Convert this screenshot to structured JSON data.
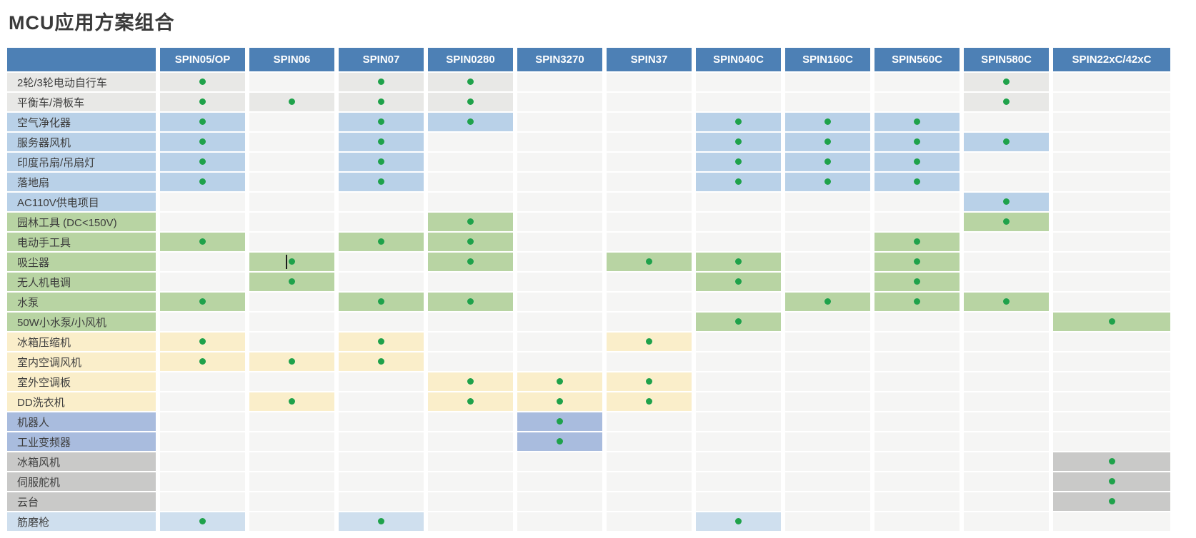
{
  "title": "MCU应用方案组合",
  "columns": [
    "SPIN05/OP",
    "SPIN06",
    "SPIN07",
    "SPIN0280",
    "SPIN3270",
    "SPIN37",
    "SPIN040C",
    "SPIN160C",
    "SPIN560C",
    "SPIN580C",
    "SPIN22xC/42xC"
  ],
  "rows": [
    {
      "label": "2轮/3轮电动自行车",
      "group": "gray",
      "dots": [
        "SPIN05/OP",
        "SPIN07",
        "SPIN0280",
        "SPIN580C"
      ]
    },
    {
      "label": "平衡车/滑板车",
      "group": "gray",
      "dots": [
        "SPIN05/OP",
        "SPIN06",
        "SPIN07",
        "SPIN0280",
        "SPIN580C"
      ]
    },
    {
      "label": "空气净化器",
      "group": "blue",
      "dots": [
        "SPIN05/OP",
        "SPIN07",
        "SPIN0280",
        "SPIN040C",
        "SPIN160C",
        "SPIN560C"
      ]
    },
    {
      "label": "服务器风机",
      "group": "blue",
      "dots": [
        "SPIN05/OP",
        "SPIN07",
        "SPIN040C",
        "SPIN160C",
        "SPIN560C",
        "SPIN580C"
      ]
    },
    {
      "label": "印度吊扇/吊扇灯",
      "group": "blue",
      "dots": [
        "SPIN05/OP",
        "SPIN07",
        "SPIN040C",
        "SPIN160C",
        "SPIN560C"
      ]
    },
    {
      "label": "落地扇",
      "group": "blue",
      "dots": [
        "SPIN05/OP",
        "SPIN07",
        "SPIN040C",
        "SPIN160C",
        "SPIN560C"
      ]
    },
    {
      "label": "AC110V供电项目",
      "group": "blue",
      "dots": [
        "SPIN580C"
      ]
    },
    {
      "label": "园林工具 (DC<150V)",
      "group": "green",
      "dots": [
        "SPIN0280",
        "SPIN580C"
      ]
    },
    {
      "label": "电动手工具",
      "group": "green",
      "dots": [
        "SPIN05/OP",
        "SPIN07",
        "SPIN0280",
        "SPIN560C"
      ]
    },
    {
      "label": "吸尘器",
      "group": "green",
      "dots": [
        "SPIN06",
        "SPIN0280",
        "SPIN37",
        "SPIN040C",
        "SPIN560C"
      ]
    },
    {
      "label": "无人机电调",
      "group": "green",
      "dots": [
        "SPIN06",
        "SPIN040C",
        "SPIN560C"
      ]
    },
    {
      "label": "水泵",
      "group": "green",
      "dots": [
        "SPIN05/OP",
        "SPIN07",
        "SPIN0280",
        "SPIN160C",
        "SPIN560C",
        "SPIN580C"
      ]
    },
    {
      "label": "50W小水泵/小风机",
      "group": "green",
      "dots": [
        "SPIN040C",
        "SPIN22xC/42xC"
      ]
    },
    {
      "label": "冰箱压缩机",
      "group": "yellow",
      "dots": [
        "SPIN05/OP",
        "SPIN07",
        "SPIN37"
      ]
    },
    {
      "label": "室内空调风机",
      "group": "yellow",
      "dots": [
        "SPIN05/OP",
        "SPIN06",
        "SPIN07"
      ]
    },
    {
      "label": "室外空调板",
      "group": "yellow",
      "dots": [
        "SPIN0280",
        "SPIN3270",
        "SPIN37"
      ]
    },
    {
      "label": "DD洗衣机",
      "group": "yellow",
      "dots": [
        "SPIN06",
        "SPIN0280",
        "SPIN3270",
        "SPIN37"
      ]
    },
    {
      "label": "机器人",
      "group": "indigo",
      "dots": [
        "SPIN3270"
      ]
    },
    {
      "label": "工业变频器",
      "group": "indigo",
      "dots": [
        "SPIN3270"
      ]
    },
    {
      "label": "冰箱风机",
      "group": "silver",
      "dots": [
        "SPIN22xC/42xC"
      ]
    },
    {
      "label": "伺服舵机",
      "group": "silver",
      "dots": [
        "SPIN22xC/42xC"
      ]
    },
    {
      "label": "云台",
      "group": "silver",
      "dots": [
        "SPIN22xC/42xC"
      ]
    },
    {
      "label": "筋磨枪",
      "group": "lightblue",
      "dots": [
        "SPIN05/OP",
        "SPIN07",
        "SPIN040C"
      ]
    }
  ],
  "cursor": {
    "row_label": "吸尘器",
    "column": "SPIN06"
  },
  "colors": {
    "header_bg": "#4d80b5",
    "header_text": "#ffffff",
    "dot": "#1fa24b",
    "cell_base": "#f5f5f4",
    "groups": {
      "gray": "#e8e8e6",
      "blue": "#b9d1e8",
      "green": "#b8d4a3",
      "yellow": "#faeeca",
      "indigo": "#a9bcde",
      "silver": "#c9c9c8",
      "lightblue": "#cfdfee"
    }
  }
}
